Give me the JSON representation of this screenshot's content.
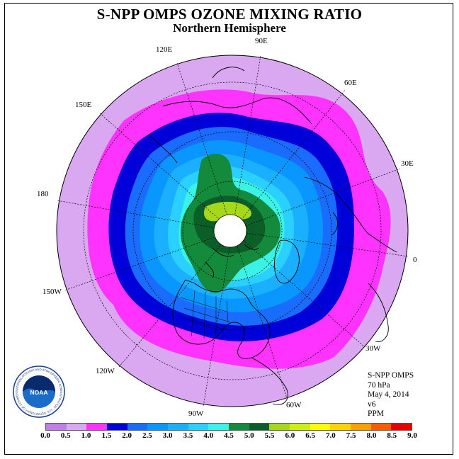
{
  "title": "S-NPP OMPS OZONE MIXING RATIO",
  "subtitle": "Northern Hemisphere",
  "longitude_labels": [
    "90E",
    "60E",
    "30E",
    "0",
    "30W",
    "60W",
    "90W",
    "120W",
    "150W",
    "180",
    "150E",
    "120E"
  ],
  "info": {
    "instrument": "S-NPP OMPS",
    "level": "70 hPa",
    "date": "May 4, 2014",
    "version": "v6",
    "units": "PPM"
  },
  "logo": {
    "text": "NOAA",
    "ring_text": "NATIONAL OCEANIC AND ATMOSPHERIC ADMINISTRATION · U.S. DEPARTMENT OF COMMERCE"
  },
  "colorbar": {
    "ticks": [
      "0.0",
      "0.5",
      "1.0",
      "1.5",
      "2.0",
      "2.5",
      "3.0",
      "3.5",
      "4.0",
      "4.5",
      "5.0",
      "5.5",
      "6.0",
      "6.5",
      "7.0",
      "7.5",
      "8.0",
      "8.5",
      "9.0"
    ],
    "colors": [
      "#c07fe8",
      "#d9a8f0",
      "#ff33ff",
      "#0000d8",
      "#1a6cff",
      "#0a96ff",
      "#1ab0ff",
      "#2ad0ff",
      "#3af2e6",
      "#148a3c",
      "#0b5e28",
      "#a6d81a",
      "#ccef10",
      "#ffff00",
      "#ffd200",
      "#ffa000",
      "#ff5a00",
      "#e80000",
      "#8b5a3c"
    ]
  },
  "map": {
    "center_color": "#ffffff",
    "projection": "north-polar-stereographic"
  }
}
